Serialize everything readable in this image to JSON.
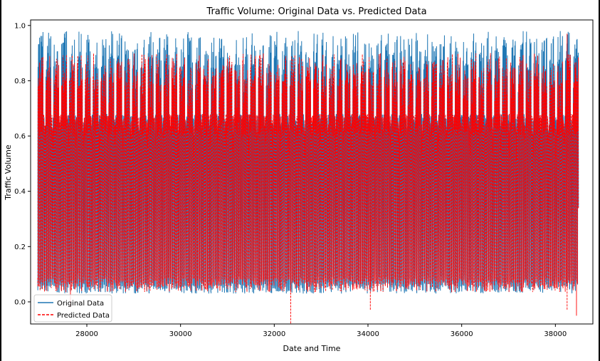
{
  "chart_data": {
    "type": "line",
    "title": "Traffic Volume: Original Data vs. Predicted Data",
    "xlabel": "Date and Time",
    "ylabel": "Traffic Volume",
    "xlim": [
      26800,
      38800
    ],
    "ylim": [
      -0.08,
      1.02
    ],
    "x_ticks": [
      28000,
      30000,
      32000,
      34000,
      36000,
      38000
    ],
    "x_tick_labels": [
      "28000",
      "30000",
      "32000",
      "34000",
      "36000",
      "38000"
    ],
    "y_ticks": [
      0.0,
      0.2,
      0.4,
      0.6,
      0.8,
      1.0
    ],
    "y_tick_labels": [
      "0.0",
      "0.2",
      "0.4",
      "0.6",
      "0.8",
      "1.0"
    ],
    "grid": false,
    "legend_placement": "lower-left",
    "x_range": [
      26950,
      38500
    ],
    "cycle_length": 24,
    "series": [
      {
        "name": "Original Data",
        "color": "#1f77b4",
        "linestyle": "solid",
        "typical_min": 0.05,
        "typical_daily_peak": [
          0.84,
          0.98
        ],
        "observed_min": 0.03,
        "observed_max": 0.99
      },
      {
        "name": "Predicted Data",
        "color": "#ff0000",
        "linestyle": "dashed",
        "typical_min": 0.06,
        "typical_daily_peak": [
          0.78,
          0.9
        ],
        "observed_min": -0.08,
        "observed_max": 0.97,
        "notable_points": [
          {
            "x": 32350,
            "y": -0.08
          },
          {
            "x": 27650,
            "y": -0.02
          },
          {
            "x": 34050,
            "y": -0.03
          },
          {
            "x": 38250,
            "y": -0.03
          },
          {
            "x": 38450,
            "y": -0.05
          },
          {
            "x": 38250,
            "y": 0.97
          }
        ]
      }
    ]
  }
}
